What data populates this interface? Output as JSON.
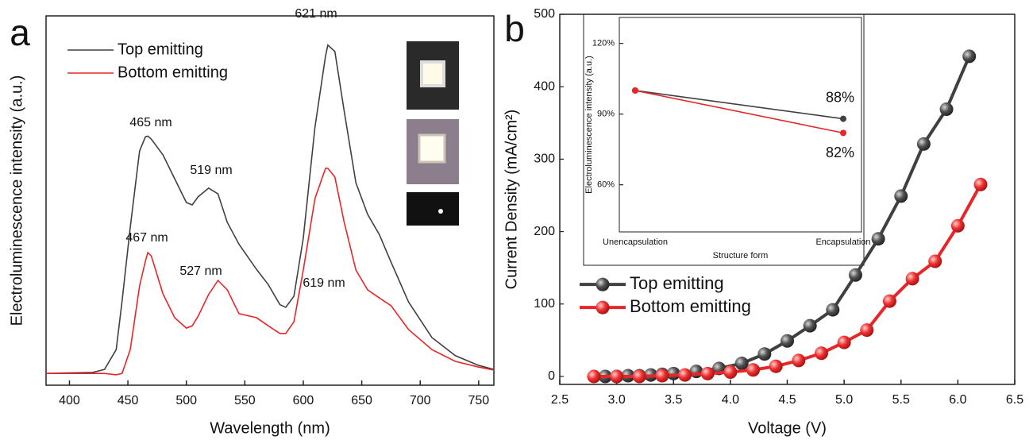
{
  "chart_data": [
    {
      "type": "line",
      "panel_label": "a",
      "x_label": "Wavelength (nm)",
      "y_label": "Electroluminescence intensity (a.u.)",
      "xlim": [
        380,
        763
      ],
      "xticks": [
        400,
        450,
        500,
        550,
        600,
        650,
        700,
        750
      ],
      "ylim": [
        0,
        1.1
      ],
      "legend": "upper left",
      "x": [
        380,
        420,
        430,
        440,
        445,
        452,
        460,
        465,
        467,
        470,
        480,
        490,
        500,
        505,
        510,
        519,
        527,
        535,
        545,
        560,
        570,
        580,
        585,
        592,
        600,
        610,
        619,
        621,
        627,
        635,
        645,
        655,
        665,
        675,
        690,
        710,
        730,
        750,
        763
      ],
      "series": [
        {
          "name": "Top emitting",
          "color": "#404040",
          "values": [
            0.035,
            0.038,
            0.047,
            0.106,
            0.25,
            0.47,
            0.698,
            0.74,
            0.742,
            0.733,
            0.686,
            0.615,
            0.544,
            0.537,
            0.561,
            0.587,
            0.57,
            0.485,
            0.42,
            0.345,
            0.3,
            0.24,
            0.232,
            0.265,
            0.438,
            0.769,
            0.98,
            1.013,
            0.994,
            0.816,
            0.603,
            0.509,
            0.449,
            0.367,
            0.248,
            0.142,
            0.088,
            0.059,
            0.047
          ]
        },
        {
          "name": "Bottom emitting",
          "color": "#e8262a",
          "values": [
            0.035,
            0.035,
            0.035,
            0.031,
            0.035,
            0.106,
            0.296,
            0.37,
            0.395,
            0.385,
            0.272,
            0.201,
            0.17,
            0.177,
            0.205,
            0.27,
            0.312,
            0.284,
            0.213,
            0.201,
            0.177,
            0.154,
            0.154,
            0.189,
            0.343,
            0.556,
            0.646,
            0.646,
            0.62,
            0.485,
            0.343,
            0.284,
            0.26,
            0.237,
            0.166,
            0.106,
            0.071,
            0.054,
            0.045
          ]
        }
      ],
      "annotations": [
        "465 nm",
        "519 nm",
        "621 nm",
        "467 nm",
        "527 nm",
        "619 nm"
      ]
    },
    {
      "type": "line",
      "panel_label": "b",
      "x_label": "Voltage (V)",
      "y_label": "Current Density (mA/cm²)",
      "xlim": [
        2.5,
        6.5
      ],
      "xticks": [
        2.5,
        {
          "value": 3,
          "label": "3.0"
        },
        3.5,
        {
          "value": 4,
          "label": "4.0"
        },
        4.5,
        {
          "value": 5,
          "label": "5.0"
        },
        5.5,
        {
          "value": 6,
          "label": "6.0"
        },
        6.5
      ],
      "ylim": [
        -11,
        500
      ],
      "yticks": [
        0,
        100,
        200,
        300,
        400,
        500
      ],
      "legend": "center left",
      "markers": true,
      "series": [
        {
          "name": "Top emitting",
          "color": "#404040",
          "x": [
            2.9,
            3.0,
            3.1,
            3.2,
            3.3,
            3.4,
            3.5,
            3.7,
            3.9,
            4.1,
            4.3,
            4.5,
            4.7,
            4.9,
            5.1,
            5.3,
            5.5,
            5.7,
            5.9,
            6.1
          ],
          "values": [
            0,
            0,
            1,
            1,
            2,
            3,
            4,
            7,
            11,
            18,
            31,
            49,
            70,
            92,
            140,
            190,
            249,
            321,
            369,
            442
          ]
        },
        {
          "name": "Bottom emitting",
          "color": "#e8262a",
          "x": [
            2.8,
            3.0,
            3.2,
            3.4,
            3.6,
            3.8,
            4.0,
            4.2,
            4.4,
            4.6,
            4.8,
            5.0,
            5.2,
            5.4,
            5.6,
            5.8,
            6.0,
            6.2
          ],
          "values": [
            0,
            0,
            0,
            1,
            2,
            4,
            6,
            9,
            14,
            22,
            32,
            47,
            64,
            104,
            135,
            159,
            208,
            265
          ]
        }
      ]
    },
    {
      "type": "line",
      "x_label": "Structure form",
      "y_label": "Electroluminescence intensity (a.u.)",
      "categories": [
        "Unencapsulation",
        "Encapsulation"
      ],
      "ylim": [
        40,
        131
      ],
      "yticks": [
        {
          "value": 60,
          "label": "60%"
        },
        {
          "value": 90,
          "label": "90%"
        },
        {
          "value": 120,
          "label": "120%"
        }
      ],
      "series": [
        {
          "color": "#404040",
          "values": [
            100,
            88
          ],
          "value_labels": [
            null,
            "88%"
          ]
        },
        {
          "color": "#e8262a",
          "values": [
            100,
            82
          ],
          "value_labels": [
            null,
            "82%"
          ]
        }
      ]
    }
  ]
}
